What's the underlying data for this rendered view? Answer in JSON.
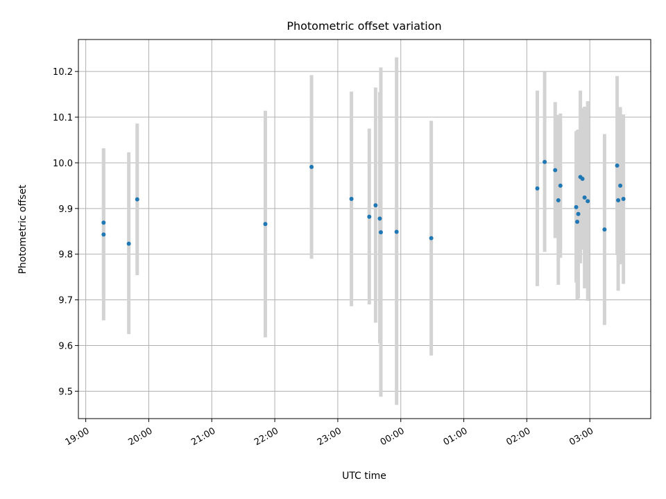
{
  "chart_data": {
    "type": "scatter",
    "title": "Photometric offset variation",
    "xlabel": "UTC time",
    "ylabel": "Photometric offset",
    "grid": true,
    "xlim": [
      "2000-01-01T18:53",
      "2000-01-02T03:58"
    ],
    "ylim": [
      9.44,
      10.27
    ],
    "x_ticks": [
      "19:00",
      "20:00",
      "21:00",
      "22:00",
      "23:00",
      "00:00",
      "01:00",
      "02:00",
      "03:00"
    ],
    "y_ticks": [
      9.5,
      9.6,
      9.7,
      9.8,
      9.9,
      10.0,
      10.1,
      10.2
    ],
    "point_color": "#1f77b4",
    "errorbar_color": "#d3d3d3",
    "points": [
      {
        "x": "2000-01-01T19:17",
        "y": 9.843,
        "lo": 9.655,
        "hi": 10.032
      },
      {
        "x": "2000-01-01T19:17",
        "y": 9.869,
        "lo": 9.705,
        "hi": 10.03
      },
      {
        "x": "2000-01-01T19:41",
        "y": 9.823,
        "lo": 9.625,
        "hi": 10.023
      },
      {
        "x": "2000-01-01T19:49",
        "y": 9.92,
        "lo": 9.754,
        "hi": 10.086
      },
      {
        "x": "2000-01-01T21:51",
        "y": 9.866,
        "lo": 9.618,
        "hi": 10.114
      },
      {
        "x": "2000-01-01T22:35",
        "y": 9.991,
        "lo": 9.79,
        "hi": 10.192
      },
      {
        "x": "2000-01-01T23:13",
        "y": 9.921,
        "lo": 9.686,
        "hi": 10.156
      },
      {
        "x": "2000-01-01T23:30",
        "y": 9.882,
        "lo": 9.69,
        "hi": 10.075
      },
      {
        "x": "2000-01-01T23:36",
        "y": 9.907,
        "lo": 9.65,
        "hi": 10.165
      },
      {
        "x": "2000-01-01T23:40",
        "y": 9.878,
        "lo": 9.605,
        "hi": 10.155
      },
      {
        "x": "2000-01-01T23:41",
        "y": 9.848,
        "lo": 9.488,
        "hi": 10.209
      },
      {
        "x": "2000-01-01T23:56",
        "y": 9.849,
        "lo": 9.47,
        "hi": 10.231
      },
      {
        "x": "2000-01-02T00:29",
        "y": 9.835,
        "lo": 9.578,
        "hi": 10.092
      },
      {
        "x": "2000-01-02T02:10",
        "y": 9.944,
        "lo": 9.73,
        "hi": 10.158
      },
      {
        "x": "2000-01-02T02:17",
        "y": 10.002,
        "lo": 9.805,
        "hi": 10.199
      },
      {
        "x": "2000-01-02T02:27",
        "y": 9.984,
        "lo": 9.835,
        "hi": 10.133
      },
      {
        "x": "2000-01-02T02:30",
        "y": 9.918,
        "lo": 9.733,
        "hi": 10.105
      },
      {
        "x": "2000-01-02T02:32",
        "y": 9.95,
        "lo": 9.792,
        "hi": 10.108
      },
      {
        "x": "2000-01-02T02:47",
        "y": 9.903,
        "lo": 9.738,
        "hi": 10.069
      },
      {
        "x": "2000-01-02T02:48",
        "y": 9.871,
        "lo": 9.7,
        "hi": 10.071
      },
      {
        "x": "2000-01-02T02:49",
        "y": 9.888,
        "lo": 9.703,
        "hi": 10.073
      },
      {
        "x": "2000-01-02T02:51",
        "y": 9.969,
        "lo": 9.78,
        "hi": 10.158
      },
      {
        "x": "2000-01-02T02:53",
        "y": 9.965,
        "lo": 9.81,
        "hi": 10.12
      },
      {
        "x": "2000-01-02T02:55",
        "y": 9.924,
        "lo": 9.725,
        "hi": 10.123
      },
      {
        "x": "2000-01-02T02:58",
        "y": 9.916,
        "lo": 9.698,
        "hi": 10.135
      },
      {
        "x": "2000-01-02T03:14",
        "y": 9.854,
        "lo": 9.645,
        "hi": 10.063
      },
      {
        "x": "2000-01-02T03:26",
        "y": 9.994,
        "lo": 9.798,
        "hi": 10.19
      },
      {
        "x": "2000-01-02T03:27",
        "y": 9.918,
        "lo": 9.72,
        "hi": 10.115
      },
      {
        "x": "2000-01-02T03:29",
        "y": 9.95,
        "lo": 9.778,
        "hi": 10.122
      },
      {
        "x": "2000-01-02T03:32",
        "y": 9.921,
        "lo": 9.735,
        "hi": 10.106
      }
    ]
  }
}
